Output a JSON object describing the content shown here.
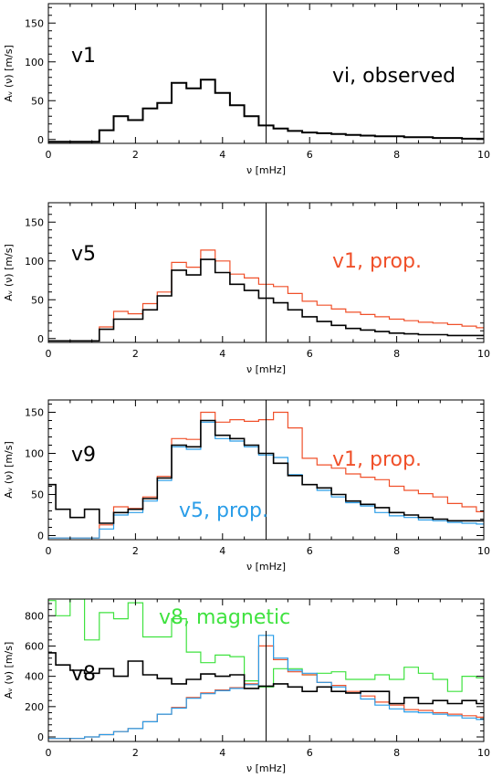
{
  "colors": {
    "black": "#000000",
    "red": "#f0502a",
    "blue": "#2a9de8",
    "green": "#3fe23f"
  },
  "chart_data": [
    {
      "type": "line",
      "step": true,
      "panel_label": "v1",
      "annotations": [
        {
          "text": "vi, observed",
          "color": "#000000"
        }
      ],
      "xlabel": "ν [mHz]",
      "ylabel": "Aᵥ (ν) [m/s]",
      "xlim": [
        0,
        10
      ],
      "ylim": [
        -5,
        175
      ],
      "xticks": [
        0,
        2,
        4,
        6,
        8,
        10
      ],
      "yticks": [
        0,
        50,
        100,
        150
      ],
      "vline": 5,
      "series": [
        {
          "color": "#000000",
          "width": 2,
          "x": [
            0,
            0.33,
            0.67,
            1,
            1.17,
            1.5,
            1.83,
            2.17,
            2.5,
            2.83,
            3.17,
            3.5,
            3.83,
            4.17,
            4.5,
            4.83,
            5.17,
            5.5,
            5.83,
            6.17,
            6.5,
            6.83,
            7.17,
            7.5,
            7.83,
            8.17,
            8.5,
            8.83,
            9.17,
            9.5,
            9.83,
            10
          ],
          "values": [
            -3,
            -3,
            -3,
            -3,
            12,
            30,
            25,
            40,
            47,
            73,
            66,
            77,
            60,
            44,
            30,
            18,
            14,
            11,
            9,
            8,
            7,
            6,
            5,
            4,
            4,
            3,
            3,
            2,
            2,
            1,
            1,
            1
          ]
        }
      ]
    },
    {
      "type": "line",
      "step": true,
      "panel_label": "v5",
      "annotations": [
        {
          "text": "v1, prop.",
          "color": "#f0502a"
        }
      ],
      "xlabel": "ν [mHz]",
      "ylabel": "Aᵥ (ν) [m/s]",
      "xlim": [
        0,
        10
      ],
      "ylim": [
        -5,
        175
      ],
      "xticks": [
        0,
        2,
        4,
        6,
        8,
        10
      ],
      "yticks": [
        0,
        50,
        100,
        150
      ],
      "vline": 5,
      "series": [
        {
          "color": "#f0502a",
          "width": 1.2,
          "x": [
            0,
            0.33,
            0.67,
            1,
            1.17,
            1.5,
            1.83,
            2.17,
            2.5,
            2.83,
            3.17,
            3.5,
            3.83,
            4.17,
            4.5,
            4.83,
            5.17,
            5.5,
            5.83,
            6.17,
            6.5,
            6.83,
            7.17,
            7.5,
            7.83,
            8.17,
            8.5,
            8.83,
            9.17,
            9.5,
            9.83,
            10
          ],
          "values": [
            -3,
            -3,
            -3,
            -3,
            15,
            35,
            32,
            45,
            60,
            98,
            92,
            114,
            100,
            83,
            78,
            70,
            67,
            58,
            48,
            43,
            38,
            34,
            31,
            28,
            25,
            23,
            21,
            20,
            18,
            16,
            14,
            13
          ]
        },
        {
          "color": "#000000",
          "width": 1.6,
          "x": [
            0,
            0.33,
            0.67,
            1,
            1.17,
            1.5,
            1.83,
            2.17,
            2.5,
            2.83,
            3.17,
            3.5,
            3.83,
            4.17,
            4.5,
            4.83,
            5.17,
            5.5,
            5.83,
            6.17,
            6.5,
            6.83,
            7.17,
            7.5,
            7.83,
            8.17,
            8.5,
            8.83,
            9.17,
            9.5,
            9.83,
            10
          ],
          "values": [
            -3,
            -3,
            -3,
            -3,
            12,
            25,
            25,
            37,
            55,
            88,
            82,
            102,
            85,
            70,
            62,
            52,
            46,
            37,
            28,
            22,
            17,
            13,
            11,
            9,
            7,
            6,
            5,
            5,
            4,
            4,
            4,
            4
          ]
        }
      ]
    },
    {
      "type": "line",
      "step": true,
      "panel_label": "v9",
      "annotations": [
        {
          "text": "v1, prop.",
          "color": "#f0502a"
        },
        {
          "text": "v5, prop.",
          "color": "#2a9de8"
        }
      ],
      "xlabel": "ν [mHz]",
      "ylabel": "Aᵥ (ν) [m/s]",
      "xlim": [
        0,
        10
      ],
      "ylim": [
        -5,
        165
      ],
      "xticks": [
        0,
        2,
        4,
        6,
        8,
        10
      ],
      "yticks": [
        0,
        50,
        100,
        150
      ],
      "vline": 5,
      "series": [
        {
          "color": "#f0502a",
          "width": 1.2,
          "x": [
            0,
            0.17,
            0.5,
            0.83,
            1.17,
            1.5,
            1.83,
            2.17,
            2.5,
            2.83,
            3.17,
            3.5,
            3.83,
            4.17,
            4.5,
            4.83,
            5.17,
            5.5,
            5.83,
            6.17,
            6.5,
            6.83,
            7.17,
            7.5,
            7.83,
            8.17,
            8.5,
            8.83,
            9.17,
            9.5,
            9.83,
            10
          ],
          "values": [
            -3,
            -3,
            -3,
            -3,
            13,
            35,
            33,
            47,
            72,
            118,
            117,
            150,
            138,
            141,
            139,
            141,
            150,
            131,
            94,
            86,
            82,
            75,
            71,
            68,
            60,
            55,
            51,
            47,
            39,
            35,
            29,
            29
          ]
        },
        {
          "color": "#2a9de8",
          "width": 1.2,
          "x": [
            0,
            0.17,
            0.5,
            0.83,
            1.17,
            1.5,
            1.83,
            2.17,
            2.5,
            2.83,
            3.17,
            3.5,
            3.83,
            4.17,
            4.5,
            4.83,
            5.17,
            5.5,
            5.83,
            6.17,
            6.5,
            6.83,
            7.17,
            7.5,
            7.83,
            8.17,
            8.5,
            8.83,
            9.17,
            9.5,
            9.83,
            10
          ],
          "values": [
            -3,
            -3,
            -3,
            -3,
            8,
            25,
            28,
            42,
            67,
            108,
            105,
            138,
            118,
            115,
            108,
            98,
            95,
            74,
            62,
            55,
            47,
            40,
            36,
            28,
            24,
            22,
            19,
            18,
            16,
            15,
            14,
            14
          ]
        },
        {
          "color": "#000000",
          "width": 1.6,
          "x": [
            0,
            0.17,
            0.5,
            0.83,
            1.17,
            1.5,
            1.83,
            2.17,
            2.5,
            2.83,
            3.17,
            3.5,
            3.83,
            4.17,
            4.5,
            4.83,
            5.17,
            5.5,
            5.83,
            6.17,
            6.5,
            6.83,
            7.17,
            7.5,
            7.83,
            8.17,
            8.5,
            8.83,
            9.17,
            9.5,
            9.83,
            10
          ],
          "values": [
            62,
            32,
            22,
            32,
            15,
            28,
            32,
            45,
            70,
            110,
            108,
            140,
            122,
            118,
            110,
            100,
            88,
            73,
            62,
            58,
            50,
            42,
            38,
            34,
            28,
            25,
            22,
            20,
            18,
            18,
            18,
            18
          ]
        }
      ]
    },
    {
      "type": "line",
      "step": true,
      "panel_label": "v8",
      "annotations": [
        {
          "text": "v8, magnetic",
          "color": "#3fe23f"
        }
      ],
      "xlabel": "ν [mHz]",
      "ylabel": "Aᵥ (ν) [m/s]",
      "xlim": [
        0,
        10
      ],
      "ylim": [
        -30,
        910
      ],
      "xticks": [
        0,
        2,
        4,
        6,
        8,
        10
      ],
      "yticks": [
        0,
        200,
        400,
        600,
        800
      ],
      "vline": 5,
      "vline_top": 700,
      "series": [
        {
          "color": "#3fe23f",
          "width": 1.2,
          "x": [
            0,
            0.17,
            0.5,
            0.83,
            1.17,
            1.5,
            1.83,
            2.17,
            2.5,
            2.83,
            3.17,
            3.5,
            3.83,
            4.17,
            4.5,
            4.83,
            5.17,
            5.5,
            5.83,
            6.17,
            6.5,
            6.83,
            7.17,
            7.5,
            7.83,
            8.17,
            8.5,
            8.83,
            9.17,
            9.5,
            9.83,
            10
          ],
          "values": [
            900,
            800,
            910,
            640,
            820,
            780,
            885,
            660,
            660,
            780,
            560,
            490,
            540,
            530,
            370,
            330,
            450,
            450,
            410,
            420,
            430,
            380,
            380,
            410,
            380,
            460,
            420,
            380,
            300,
            400,
            390,
            390
          ]
        },
        {
          "color": "#f0502a",
          "width": 1.2,
          "x": [
            0,
            0.17,
            0.5,
            0.83,
            1.17,
            1.5,
            1.83,
            2.17,
            2.5,
            2.83,
            3.17,
            3.5,
            3.83,
            4.17,
            4.5,
            4.83,
            5.17,
            5.5,
            5.83,
            6.17,
            6.5,
            6.83,
            7.17,
            7.5,
            7.83,
            8.17,
            8.5,
            8.83,
            9.17,
            9.5,
            9.83,
            10
          ],
          "values": [
            -10,
            -10,
            -10,
            0,
            15,
            35,
            55,
            100,
            150,
            195,
            260,
            290,
            310,
            325,
            350,
            600,
            510,
            430,
            410,
            360,
            340,
            300,
            270,
            230,
            210,
            180,
            175,
            160,
            150,
            140,
            130,
            130
          ]
        },
        {
          "color": "#2a9de8",
          "width": 1.2,
          "x": [
            0,
            0.17,
            0.5,
            0.83,
            1.17,
            1.5,
            1.83,
            2.17,
            2.5,
            2.83,
            3.17,
            3.5,
            3.83,
            4.17,
            4.5,
            4.83,
            5.17,
            5.5,
            5.83,
            6.17,
            6.5,
            6.83,
            7.17,
            7.5,
            7.83,
            8.17,
            8.5,
            8.83,
            9.17,
            9.5,
            9.83,
            10
          ],
          "values": [
            -10,
            -10,
            -10,
            0,
            15,
            35,
            55,
            100,
            150,
            190,
            255,
            285,
            305,
            320,
            345,
            670,
            520,
            440,
            420,
            360,
            330,
            290,
            250,
            210,
            185,
            165,
            160,
            150,
            140,
            125,
            115,
            115
          ]
        },
        {
          "color": "#000000",
          "width": 1.6,
          "x": [
            0,
            0.17,
            0.5,
            0.83,
            1.17,
            1.5,
            1.83,
            2.17,
            2.5,
            2.83,
            3.17,
            3.5,
            3.83,
            4.17,
            4.5,
            4.83,
            5.17,
            5.5,
            5.83,
            6.17,
            6.5,
            6.83,
            7.17,
            7.5,
            7.83,
            8.17,
            8.5,
            8.83,
            9.17,
            9.5,
            9.83,
            10
          ],
          "values": [
            555,
            475,
            440,
            420,
            450,
            400,
            500,
            410,
            385,
            350,
            380,
            415,
            400,
            410,
            320,
            335,
            350,
            330,
            300,
            330,
            300,
            290,
            300,
            300,
            220,
            260,
            220,
            240,
            220,
            240,
            220,
            220
          ]
        }
      ]
    }
  ]
}
